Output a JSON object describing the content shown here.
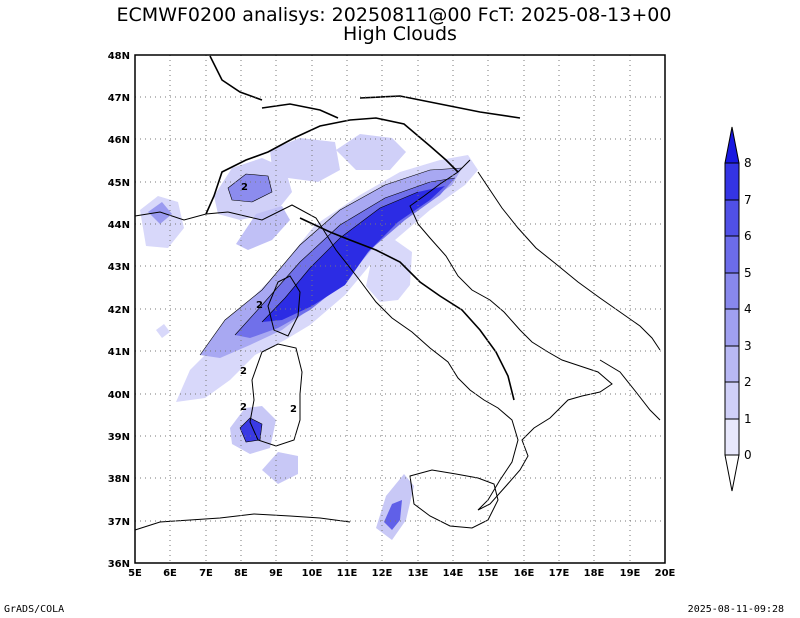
{
  "title": {
    "line1": "ECMWF0200 analisys: 20250811@00 FcT: 2025-08-13+00",
    "line2": "High Clouds"
  },
  "footer": {
    "left": "GrADS/COLA",
    "right": "2025-08-11-09:28"
  },
  "axes": {
    "x_labels": [
      "5E",
      "6E",
      "7E",
      "8E",
      "9E",
      "10E",
      "11E",
      "12E",
      "13E",
      "14E",
      "15E",
      "16E",
      "17E",
      "18E",
      "19E",
      "20E"
    ],
    "y_labels": [
      "36N",
      "37N",
      "38N",
      "39N",
      "40N",
      "41N",
      "42N",
      "43N",
      "44N",
      "45N",
      "46N",
      "47N",
      "48N"
    ],
    "x_range": [
      5,
      20
    ],
    "y_range": [
      36,
      48
    ]
  },
  "colorbar": {
    "labels": [
      "0",
      "1",
      "2",
      "3",
      "4",
      "5",
      "6",
      "7",
      "8"
    ],
    "colors": [
      "#e8e8fc",
      "#d0d0f8",
      "#b8b8f4",
      "#a0a0f0",
      "#8888ec",
      "#6c6cea",
      "#5050e6",
      "#3434e4",
      "#1818e0"
    ]
  },
  "contour_labels": [
    "2",
    "2",
    "2",
    "2",
    "2"
  ]
}
